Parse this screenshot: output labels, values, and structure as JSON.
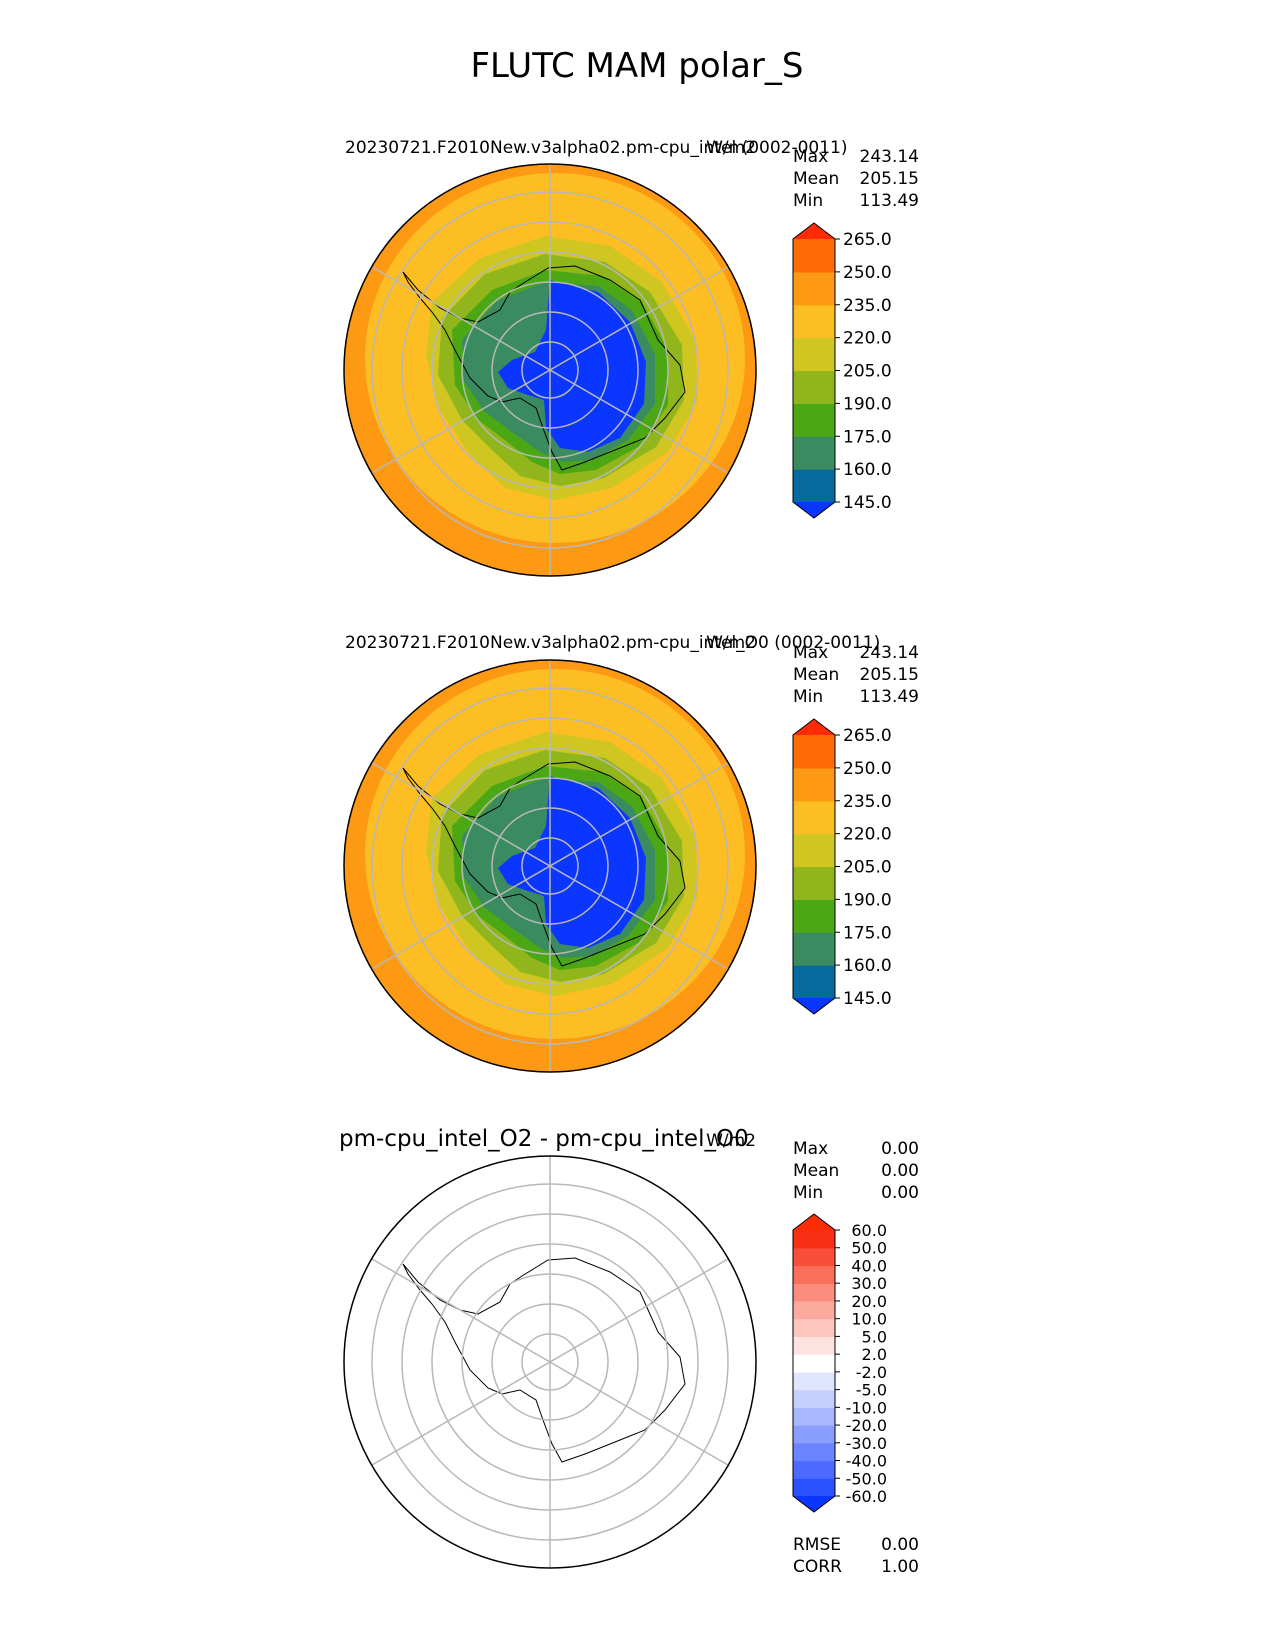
{
  "figure_title": "FLUTC MAM polar_S",
  "panels": [
    {
      "title": "20230721.F2010New.v3alpha02.pm-cpu_intel (0002-0011)",
      "units": "W/m2",
      "stats": [
        {
          "label": "Max",
          "value": "243.14"
        },
        {
          "label": "Mean",
          "value": "205.15"
        },
        {
          "label": "Min",
          "value": "113.49"
        }
      ],
      "colorbar": {
        "ticks": [
          "145.0",
          "160.0",
          "175.0",
          "190.0",
          "205.0",
          "220.0",
          "235.0",
          "250.0",
          "265.0"
        ],
        "colors": [
          "#0a36ff",
          "#046aa0",
          "#3a8c60",
          "#4ba814",
          "#90b61c",
          "#cfc622",
          "#fcbe22",
          "#fe9914",
          "#fe6a06",
          "#fd2c04"
        ]
      }
    },
    {
      "title": "20230721.F2010New.v3alpha02.pm-cpu_intel_O0 (0002-0011)",
      "units": "W/m2",
      "stats": [
        {
          "label": "Max",
          "value": "243.14"
        },
        {
          "label": "Mean",
          "value": "205.15"
        },
        {
          "label": "Min",
          "value": "113.49"
        }
      ],
      "colorbar": {
        "ticks": [
          "145.0",
          "160.0",
          "175.0",
          "190.0",
          "205.0",
          "220.0",
          "235.0",
          "250.0",
          "265.0"
        ],
        "colors": [
          "#0a36ff",
          "#046aa0",
          "#3a8c60",
          "#4ba814",
          "#90b61c",
          "#cfc622",
          "#fcbe22",
          "#fe9914",
          "#fe6a06",
          "#fd2c04"
        ]
      }
    },
    {
      "title": "pm-cpu_intel_O2 - pm-cpu_intel_O0",
      "units": "W/m2",
      "stats": [
        {
          "label": "Max",
          "value": "0.00"
        },
        {
          "label": "Mean",
          "value": "0.00"
        },
        {
          "label": "Min",
          "value": "0.00"
        }
      ],
      "colorbar": {
        "ticks": [
          "-60.0",
          "-50.0",
          "-40.0",
          "-30.0",
          "-20.0",
          "-10.0",
          "-5.0",
          "-2.0",
          "2.0",
          "5.0",
          "10.0",
          "20.0",
          "30.0",
          "40.0",
          "50.0",
          "60.0"
        ],
        "colors": [
          "#0a36ff",
          "#2b50ff",
          "#4c6aff",
          "#6b84ff",
          "#8a9eff",
          "#a8b8ff",
          "#c6d0ff",
          "#e0e6ff",
          "#ffffff",
          "#fde2e0",
          "#fdc7c0",
          "#fdaa9e",
          "#fc8c7c",
          "#fb6e5a",
          "#f94e38",
          "#f82e16",
          "#fd2c04"
        ]
      },
      "metrics": [
        {
          "label": "RMSE",
          "value": "0.00"
        },
        {
          "label": "CORR",
          "value": "1.00"
        }
      ]
    }
  ],
  "map_colors": {
    "ocean_far": "#fe9914",
    "ocean": "#fcbe22",
    "band1": "#cfc622",
    "band2": "#90b61c",
    "band3": "#4ba814",
    "band4": "#3a8c60",
    "plateau": "#0a36ff",
    "grid": "#b8b8b8"
  }
}
